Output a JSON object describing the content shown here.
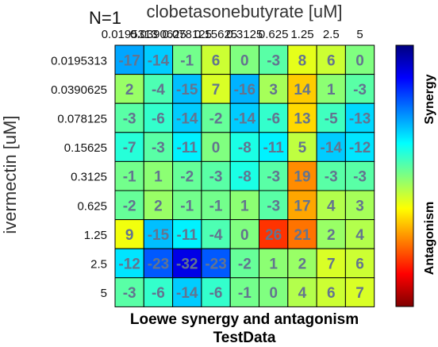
{
  "chart_data": {
    "type": "heatmap",
    "corner_label": "N=1",
    "x_axis_label": "clobetasonebutyrate [uM]",
    "y_axis_label": "ivermectin [uM]",
    "x_ticks": [
      "0.0195313",
      "0.0390625",
      "0.078125",
      "0.15625",
      "0.3125",
      "0.625",
      "1.25",
      "2.5",
      "5"
    ],
    "y_ticks": [
      "0.0195313",
      "0.0390625",
      "0.078125",
      "0.15625",
      "0.3125",
      "0.625",
      "1.25",
      "2.5",
      "5"
    ],
    "values": [
      [
        -17,
        -14,
        -1,
        6,
        0,
        -3,
        8,
        6,
        0
      ],
      [
        2,
        -4,
        -15,
        7,
        -16,
        3,
        14,
        1,
        -3
      ],
      [
        -3,
        -6,
        -14,
        -2,
        -14,
        -6,
        13,
        -5,
        -13
      ],
      [
        -7,
        -3,
        -11,
        0,
        -8,
        -11,
        5,
        -14,
        -12
      ],
      [
        -1,
        1,
        -2,
        -3,
        -8,
        -3,
        19,
        -3,
        -3
      ],
      [
        -2,
        2,
        -1,
        -1,
        1,
        -3,
        17,
        4,
        3
      ],
      [
        9,
        -15,
        -11,
        -4,
        0,
        26,
        21,
        2,
        4
      ],
      [
        -12,
        -23,
        -32,
        -23,
        -2,
        1,
        2,
        7,
        6
      ],
      [
        -3,
        -6,
        -14,
        -6,
        -1,
        0,
        4,
        6,
        7
      ]
    ],
    "color_range": [
      -40,
      40
    ],
    "colormap": "jet",
    "colorbar_labels": {
      "top": "Synergy",
      "bottom": "Antagonism"
    },
    "title_lines": [
      "Loewe synergy and antagonism",
      "TestData"
    ],
    "grid": true
  }
}
